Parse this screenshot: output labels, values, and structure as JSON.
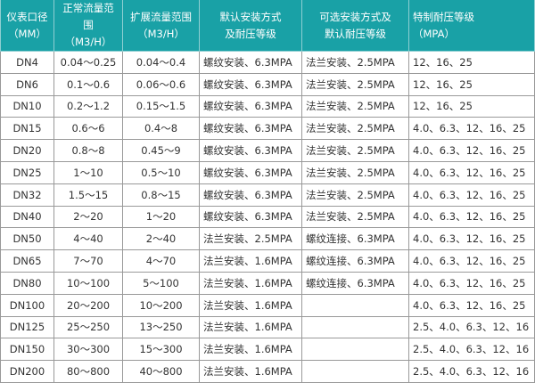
{
  "table": {
    "header_color": "#19a1a6",
    "headers": [
      {
        "line1": "仪表口径",
        "line2": "（MM）"
      },
      {
        "line1": "正常流量范围",
        "line2": "（M3/H）"
      },
      {
        "line1": "扩展流量范围",
        "line2": "（M3/H）"
      },
      {
        "line1": "默认安装方式",
        "line2": "及耐压等级"
      },
      {
        "line1": "可选安装方式及",
        "line2": "默认耐压等级"
      },
      {
        "line1": "特制耐压等级",
        "line2": "（MPA）"
      }
    ],
    "rows": [
      [
        "DN4",
        "0.04～0.25",
        "0.04～0.4",
        "螺纹安装、6.3MPA",
        "法兰安装、2.5MPA",
        "12、16、25"
      ],
      [
        "DN6",
        "0.1～0.6",
        "0.06～0.6",
        "螺纹安装、6.3MPA",
        "法兰安装、2.5MPA",
        "12、16、25"
      ],
      [
        "DN10",
        "0.2～1.2",
        "0.15～1.5",
        "螺纹安装、6.3MPA",
        "法兰安装、2.5MPA",
        "12、16、25"
      ],
      [
        "DN15",
        "0.6～6",
        "0.4～8",
        "螺纹安装、6.3MPA",
        "法兰安装、2.5MPA",
        "4.0、6.3、12、16、25"
      ],
      [
        "DN20",
        "0.8～8",
        "0.45～9",
        "螺纹安装、6.3MPA",
        "法兰安装、2.5MPA",
        "4.0、6.3、12、16、25"
      ],
      [
        "DN25",
        "1～10",
        "0.5～10",
        "螺纹安装、6.3MPA",
        "法兰安装、2.5MPA",
        "4.0、6.3、12、16、25"
      ],
      [
        "DN32",
        "1.5～15",
        "0.8～15",
        "螺纹安装、6.3MPA",
        "法兰安装、2.5MPA",
        "4.0、6.3、12、16、25"
      ],
      [
        "DN40",
        "2～20",
        "1～20",
        "螺纹安装、6.3MPA",
        "法兰安装、2.5MPA",
        "4.0、6.3、12、16、25"
      ],
      [
        "DN50",
        "4～40",
        "2～40",
        "法兰安装、2.5MPA",
        "螺纹连接、6.3MPA",
        "4.0、6.3、12、16、25"
      ],
      [
        "DN65",
        "7～70",
        "4～70",
        "法兰安装、1.6MPA",
        "螺纹连接、6.3MPA",
        "4.0、6.3、12、16、25"
      ],
      [
        "DN80",
        "10～100",
        "5～100",
        "法兰安装、1.6MPA",
        "螺纹连接、6.3MPA",
        "4.0、6.3、12、16、25"
      ],
      [
        "DN100",
        "20～200",
        "10～200",
        "法兰安装、1.6MPA",
        "",
        "4.0、6.3、12、16、25"
      ],
      [
        "DN125",
        "25～250",
        "13～250",
        "法兰安装、1.6MPA",
        "",
        "2.5、4.0、6.3、12、16"
      ],
      [
        "DN150",
        "30～300",
        "15～300",
        "法兰安装、1.6MPA",
        "",
        "2.5、4.0、6.3、12、16"
      ],
      [
        "DN200",
        "80～800",
        "40～800",
        "法兰安装、1.6MPA",
        "",
        "2.5、4.0、6.3、12、16"
      ]
    ]
  }
}
